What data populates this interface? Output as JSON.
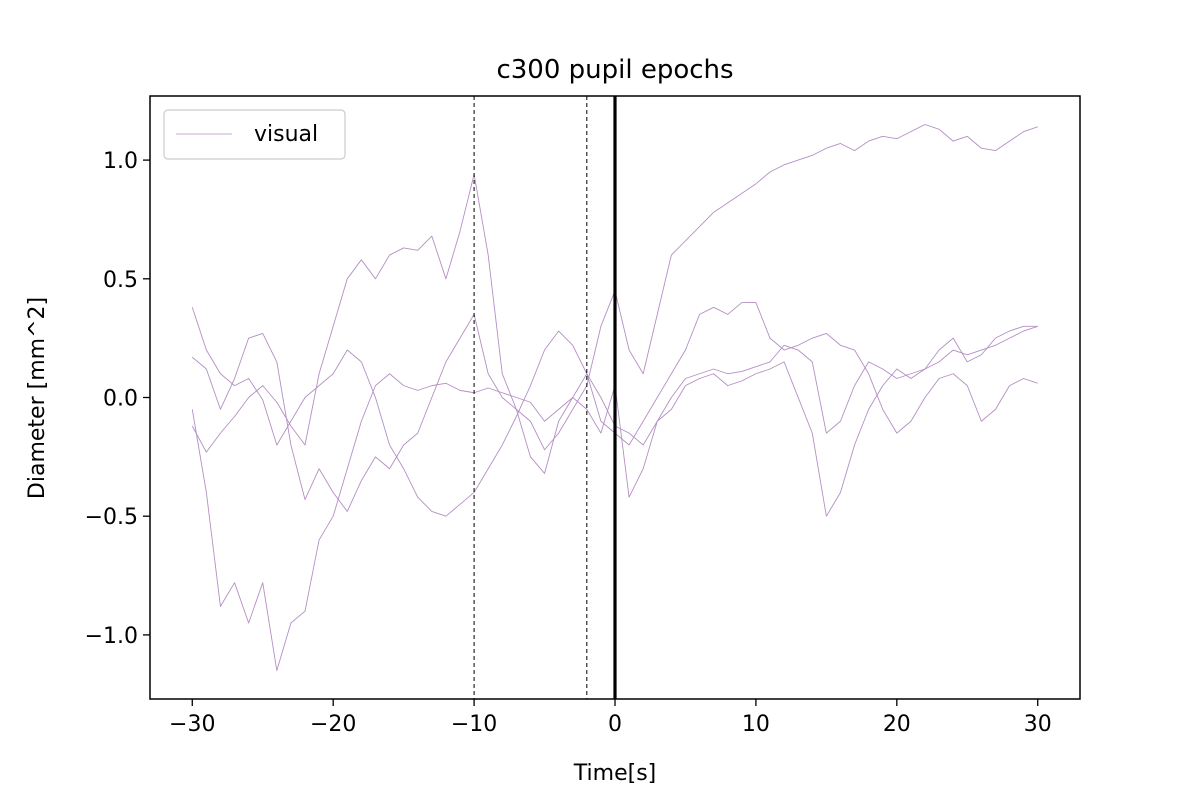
{
  "chart_data": {
    "type": "line",
    "title": "c300 pupil epochs",
    "xlabel": "Time[s]",
    "ylabel": "Diameter [mm^2]",
    "xlim": [
      -33,
      33
    ],
    "ylim": [
      -1.27,
      1.27
    ],
    "xticks": [
      -30,
      -20,
      -10,
      0,
      10,
      20,
      30
    ],
    "xtick_labels": [
      "−30",
      "−20",
      "−10",
      "0",
      "10",
      "20",
      "30"
    ],
    "yticks": [
      -1.0,
      -0.5,
      0.0,
      0.5,
      1.0
    ],
    "ytick_labels": [
      "−1.0",
      "−0.5",
      "0.0",
      "0.5",
      "1.0"
    ],
    "grid": false,
    "legend": {
      "position": "top-left",
      "entries": [
        "visual"
      ]
    },
    "series_color": "#b48fc4",
    "vlines": [
      {
        "x": -10,
        "style": "dashed",
        "color": "#000000"
      },
      {
        "x": -2,
        "style": "dashed",
        "color": "#000000"
      },
      {
        "x": 0,
        "style": "solid-thick",
        "color": "#000000"
      }
    ],
    "series": [
      {
        "x": [
          -30,
          -29,
          -28,
          -27,
          -26,
          -25,
          -24,
          -23,
          -22,
          -21,
          -20,
          -19,
          -18,
          -17,
          -16,
          -15,
          -14,
          -13,
          -12,
          -11,
          -10,
          -9,
          -8,
          -7,
          -6,
          -5,
          -4,
          -3,
          -2,
          -1,
          0,
          1,
          2,
          3,
          4,
          5,
          6,
          7,
          8,
          9,
          10,
          11,
          12,
          13,
          14,
          15,
          16,
          17,
          18,
          19,
          20,
          21,
          22,
          23,
          24,
          25,
          26,
          27,
          28,
          29,
          30
        ],
        "values": [
          -0.12,
          -0.23,
          -0.15,
          -0.08,
          0.0,
          0.05,
          -0.02,
          -0.12,
          -0.2,
          0.1,
          0.3,
          0.5,
          0.58,
          0.5,
          0.6,
          0.63,
          0.62,
          0.68,
          0.5,
          0.7,
          0.94,
          0.6,
          0.1,
          -0.05,
          -0.1,
          -0.22,
          -0.15,
          -0.05,
          0.05,
          0.3,
          0.45,
          0.2,
          0.1,
          0.35,
          0.6,
          0.66,
          0.72,
          0.78,
          0.82,
          0.86,
          0.9,
          0.95,
          0.98,
          1.0,
          1.02,
          1.05,
          1.07,
          1.04,
          1.08,
          1.1,
          1.09,
          1.12,
          1.15,
          1.13,
          1.08,
          1.1,
          1.05,
          1.04,
          1.08,
          1.12,
          1.14
        ]
      },
      {
        "x": [
          -30,
          -29,
          -28,
          -27,
          -26,
          -25,
          -24,
          -23,
          -22,
          -21,
          -20,
          -19,
          -18,
          -17,
          -16,
          -15,
          -14,
          -13,
          -12,
          -11,
          -10,
          -9,
          -8,
          -7,
          -6,
          -5,
          -4,
          -3,
          -2,
          -1,
          0,
          1,
          2,
          3,
          4,
          5,
          6,
          7,
          8,
          9,
          10,
          11,
          12,
          13,
          14,
          15,
          16,
          17,
          18,
          19,
          20,
          21,
          22,
          23,
          24,
          25,
          26,
          27,
          28,
          29,
          30
        ],
        "values": [
          0.38,
          0.2,
          0.1,
          0.05,
          0.08,
          -0.01,
          -0.2,
          -0.1,
          0.0,
          0.05,
          0.1,
          0.2,
          0.15,
          0.0,
          -0.2,
          -0.3,
          -0.42,
          -0.48,
          -0.5,
          -0.45,
          -0.4,
          -0.3,
          -0.2,
          -0.08,
          0.05,
          0.2,
          0.28,
          0.22,
          0.1,
          -0.1,
          -0.15,
          -0.2,
          -0.1,
          0.0,
          0.1,
          0.2,
          0.35,
          0.38,
          0.35,
          0.4,
          0.4,
          0.25,
          0.2,
          0.22,
          0.25,
          0.27,
          0.22,
          0.2,
          0.1,
          -0.05,
          -0.15,
          -0.1,
          0.0,
          0.08,
          0.1,
          0.05,
          -0.1,
          -0.05,
          0.05,
          0.08,
          0.06
        ]
      },
      {
        "x": [
          -30,
          -29,
          -28,
          -27,
          -26,
          -25,
          -24,
          -23,
          -22,
          -21,
          -20,
          -19,
          -18,
          -17,
          -16,
          -15,
          -14,
          -13,
          -12,
          -11,
          -10,
          -9,
          -8,
          -7,
          -6,
          -5,
          -4,
          -3,
          -2,
          -1,
          0,
          1,
          2,
          3,
          4,
          5,
          6,
          7,
          8,
          9,
          10,
          11,
          12,
          13,
          14,
          15,
          16,
          17,
          18,
          19,
          20,
          21,
          22,
          23,
          24,
          25,
          26,
          27,
          28,
          29,
          30
        ],
        "values": [
          0.17,
          0.12,
          -0.05,
          0.08,
          0.25,
          0.27,
          0.15,
          -0.2,
          -0.43,
          -0.3,
          -0.4,
          -0.48,
          -0.35,
          -0.25,
          -0.3,
          -0.2,
          -0.15,
          0.0,
          0.15,
          0.25,
          0.35,
          0.1,
          0.0,
          -0.05,
          -0.25,
          -0.32,
          -0.1,
          0.0,
          -0.05,
          -0.15,
          0.05,
          -0.42,
          -0.3,
          -0.1,
          -0.05,
          0.05,
          0.08,
          0.1,
          0.05,
          0.07,
          0.1,
          0.12,
          0.15,
          0.0,
          -0.15,
          -0.5,
          -0.4,
          -0.2,
          -0.05,
          0.05,
          0.12,
          0.08,
          0.12,
          0.2,
          0.25,
          0.15,
          0.18,
          0.25,
          0.28,
          0.3,
          0.3
        ]
      },
      {
        "x": [
          -30,
          -29,
          -28,
          -27,
          -26,
          -25,
          -24,
          -23,
          -22,
          -21,
          -20,
          -19,
          -18,
          -17,
          -16,
          -15,
          -14,
          -13,
          -12,
          -11,
          -10,
          -9,
          -8,
          -7,
          -6,
          -5,
          -4,
          -3,
          -2,
          -1,
          0,
          1,
          2,
          3,
          4,
          5,
          6,
          7,
          8,
          9,
          10,
          11,
          12,
          13,
          14,
          15,
          16,
          17,
          18,
          19,
          20,
          21,
          22,
          23,
          24,
          25,
          26,
          27,
          28,
          29,
          30
        ],
        "values": [
          -0.05,
          -0.4,
          -0.88,
          -0.78,
          -0.95,
          -0.78,
          -1.15,
          -0.95,
          -0.9,
          -0.6,
          -0.5,
          -0.3,
          -0.1,
          0.05,
          0.1,
          0.05,
          0.03,
          0.05,
          0.06,
          0.03,
          0.02,
          0.04,
          0.02,
          0.0,
          -0.02,
          -0.1,
          -0.05,
          0.0,
          0.1,
          0.0,
          -0.12,
          -0.15,
          -0.2,
          -0.1,
          0.0,
          0.08,
          0.1,
          0.12,
          0.1,
          0.11,
          0.13,
          0.15,
          0.22,
          0.2,
          0.15,
          -0.15,
          -0.1,
          0.05,
          0.15,
          0.12,
          0.08,
          0.1,
          0.12,
          0.15,
          0.2,
          0.18,
          0.2,
          0.22,
          0.25,
          0.28,
          0.3
        ]
      }
    ]
  }
}
